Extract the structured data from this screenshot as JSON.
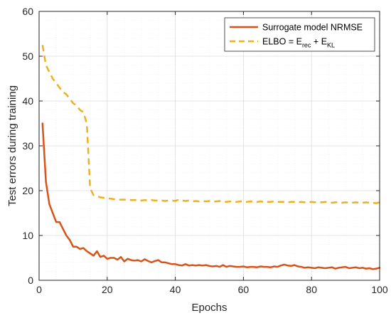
{
  "chart_data": {
    "type": "line",
    "title": "",
    "xlabel": "Epochs",
    "ylabel": "Test errors during training",
    "xlim": [
      0,
      100
    ],
    "ylim": [
      0,
      60
    ],
    "xticks": [
      0,
      20,
      40,
      60,
      80,
      100
    ],
    "yticks": [
      0,
      10,
      20,
      30,
      40,
      50,
      60
    ],
    "grid": true,
    "legend_position": "top-right",
    "series": [
      {
        "name": "Surrogate model NRMSE",
        "color": "#d95319",
        "style": "solid",
        "x": [
          1,
          2,
          3,
          4,
          5,
          6,
          7,
          8,
          9,
          10,
          11,
          12,
          13,
          14,
          15,
          16,
          17,
          18,
          19,
          20,
          21,
          22,
          23,
          24,
          25,
          26,
          27,
          28,
          29,
          30,
          31,
          32,
          33,
          34,
          35,
          36,
          37,
          38,
          39,
          40,
          41,
          42,
          43,
          44,
          45,
          46,
          47,
          48,
          49,
          50,
          51,
          52,
          53,
          54,
          55,
          56,
          57,
          58,
          59,
          60,
          61,
          62,
          63,
          64,
          65,
          66,
          67,
          68,
          69,
          70,
          71,
          72,
          73,
          74,
          75,
          76,
          77,
          78,
          79,
          80,
          81,
          82,
          83,
          84,
          85,
          86,
          87,
          88,
          89,
          90,
          91,
          92,
          93,
          94,
          95,
          96,
          97,
          98,
          99,
          100
        ],
        "values": [
          35,
          22,
          17,
          15,
          13,
          13,
          11.5,
          10,
          9,
          7.5,
          7.5,
          7,
          7.2,
          6.5,
          6,
          5.5,
          6.5,
          5.2,
          5.5,
          4.8,
          5,
          5,
          4.6,
          5.2,
          4.2,
          4.8,
          4.5,
          4.4,
          4.5,
          4.2,
          4.7,
          4.3,
          4,
          4.3,
          4.5,
          4,
          4,
          3.8,
          3.6,
          3.6,
          3.4,
          3.3,
          3.6,
          3.3,
          3.4,
          3.3,
          3.4,
          3.3,
          3.4,
          3.2,
          3.1,
          3.2,
          3,
          3.4,
          3,
          3.2,
          3.1,
          3,
          3,
          3.1,
          2.9,
          3,
          3,
          2.9,
          3.1,
          3,
          3,
          2.9,
          3.1,
          3,
          3.3,
          3.5,
          3.3,
          3.2,
          3.4,
          3.1,
          3,
          2.8,
          2.9,
          2.8,
          2.7,
          2.9,
          2.8,
          2.7,
          2.8,
          2.9,
          2.6,
          2.8,
          2.9,
          3,
          2.7,
          2.8,
          2.9,
          2.7,
          2.8,
          2.6,
          2.7,
          2.5,
          2.6,
          2.8
        ]
      },
      {
        "name": "ELBO = E_rec + E_KL",
        "color": "#edb120",
        "style": "dashed",
        "x": [
          1,
          2,
          3,
          4,
          5,
          6,
          7,
          8,
          9,
          10,
          11,
          12,
          13,
          14,
          15,
          16,
          17,
          18,
          19,
          20,
          21,
          22,
          23,
          24,
          25,
          26,
          27,
          28,
          29,
          30,
          31,
          32,
          33,
          34,
          35,
          36,
          37,
          38,
          39,
          40,
          41,
          42,
          43,
          44,
          45,
          46,
          47,
          48,
          49,
          50,
          51,
          52,
          53,
          54,
          55,
          56,
          57,
          58,
          59,
          60,
          61,
          62,
          63,
          64,
          65,
          66,
          67,
          68,
          69,
          70,
          71,
          72,
          73,
          74,
          75,
          76,
          77,
          78,
          79,
          80,
          81,
          82,
          83,
          84,
          85,
          86,
          87,
          88,
          89,
          90,
          91,
          92,
          93,
          94,
          95,
          96,
          97,
          98,
          99,
          100
        ],
        "values": [
          52.5,
          48,
          46.5,
          45,
          44,
          43,
          42,
          41.5,
          40.5,
          39.5,
          39,
          38,
          37.5,
          35,
          20.5,
          19,
          18.8,
          18.5,
          18.4,
          18.3,
          18.2,
          18.1,
          18,
          18,
          18,
          18,
          17.9,
          17.9,
          17.9,
          17.8,
          17.9,
          17.8,
          17.9,
          17.8,
          17.8,
          17.8,
          17.7,
          17.8,
          17.8,
          17.7,
          18,
          17.8,
          17.7,
          17.8,
          17.6,
          17.7,
          17.6,
          17.7,
          17.6,
          17.7,
          17.6,
          17.6,
          17.7,
          17.6,
          17.5,
          17.6,
          17.6,
          17.5,
          17.6,
          17.6,
          17.5,
          17.6,
          17.5,
          17.5,
          17.6,
          17.5,
          17.5,
          17.5,
          17.6,
          17.5,
          17.5,
          17.5,
          17.4,
          17.5,
          17.5,
          17.4,
          17.5,
          17.4,
          17.4,
          17.5,
          17.4,
          17.4,
          17.4,
          17.5,
          17.4,
          17.3,
          17.4,
          17.4,
          17.3,
          17.4,
          17.3,
          17.3,
          17.4,
          17.3,
          17.3,
          17.4,
          17.3,
          17.3,
          17.2,
          17.4
        ]
      }
    ]
  },
  "legend": {
    "entry1_label": "Surrogate model NRMSE",
    "entry2_label": "ELBO = E",
    "entry2_sub1": "rec",
    "entry2_mid": " + E",
    "entry2_sub2": "KL"
  }
}
